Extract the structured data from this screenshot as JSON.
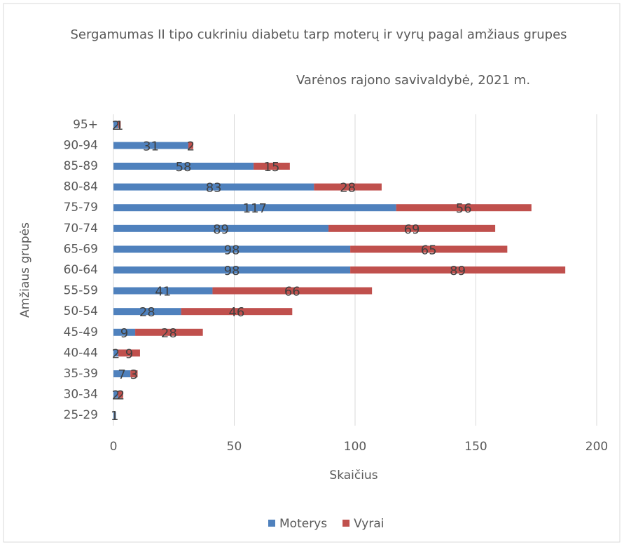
{
  "chart_data": {
    "type": "stacked_hbar",
    "title": "Sergamumas II tipo cukriniu diabetu tarp moterų ir vyrų pagal amžiaus grupes",
    "subtitle": "Varėnos rajono savivaldybė, 2021 m.",
    "x_label": "Skaičius",
    "y_label": "Amžiaus grupės",
    "categories": [
      "95+",
      "90-94",
      "85-89",
      "80-84",
      "75-79",
      "70-74",
      "65-69",
      "60-64",
      "55-59",
      "50-54",
      "45-49",
      "40-44",
      "35-39",
      "30-34",
      "25-29"
    ],
    "series": [
      {
        "name": "Moterys",
        "color": "#4f81bd",
        "values": [
          2,
          31,
          58,
          83,
          117,
          89,
          98,
          98,
          41,
          28,
          9,
          2,
          7,
          2,
          1
        ]
      },
      {
        "name": "Vyrai",
        "color": "#c0504d",
        "values": [
          1,
          2,
          15,
          28,
          56,
          69,
          65,
          89,
          66,
          46,
          28,
          9,
          3,
          2,
          null
        ]
      }
    ],
    "xlim": [
      0,
      200
    ],
    "xticks": [
      0,
      50,
      100,
      150,
      200
    ],
    "grid": true,
    "legend": "bottom"
  }
}
